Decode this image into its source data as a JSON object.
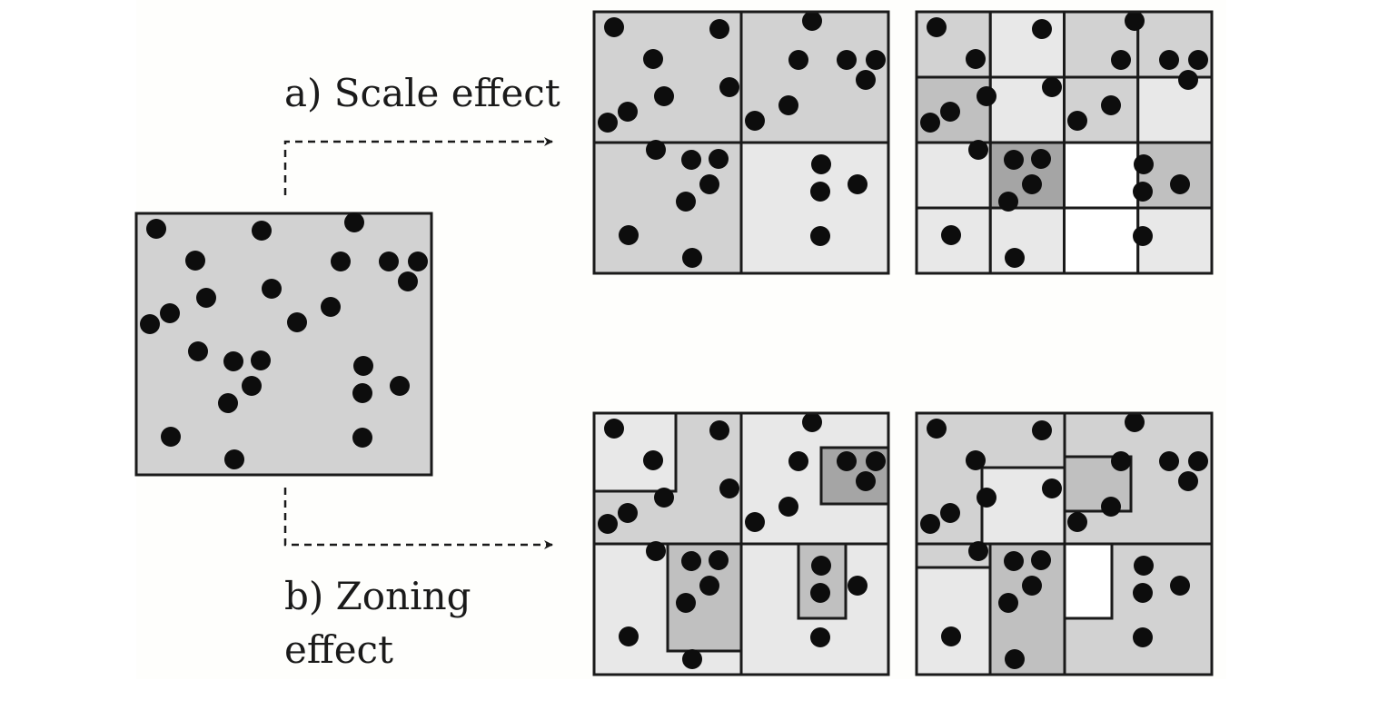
{
  "labels": {
    "scale": "a) Scale effect",
    "zoning_line1": "b) Zoning",
    "zoning_line2": "effect"
  },
  "colors": {
    "outline": "#1a1a1a",
    "dot": "#0d0d0d",
    "density_white": "#ffffff",
    "density_light": "#e8e8e8",
    "density_medium": "#d2d2d2",
    "density_medium_dark": "#c0c0c0",
    "density_dark": "#a5a5a5"
  }
}
